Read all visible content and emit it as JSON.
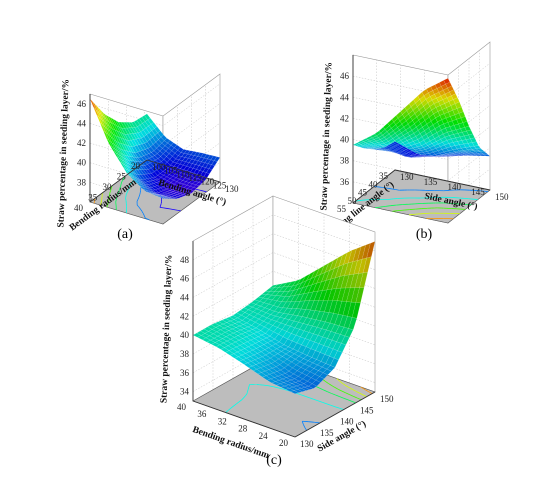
{
  "chart_data": [
    {
      "type": "surface",
      "panel_label": "(a)",
      "xlabel": "Bending radius/mm",
      "ylabel": "Bending angle (°)",
      "zlabel": "Straw percentage in seeding layer/%",
      "x_ticks": [
        20,
        25,
        30,
        35,
        40
      ],
      "y_ticks": [
        100,
        105,
        110,
        115,
        120,
        125,
        130
      ],
      "z_ticks": [
        38,
        40,
        42,
        44,
        46
      ],
      "xlim": [
        20,
        40
      ],
      "ylim": [
        100,
        130
      ],
      "zlim": [
        36,
        47
      ],
      "contour_floor": true,
      "grid": true,
      "surface": {
        "x": [
          20,
          25,
          30,
          35,
          40
        ],
        "y": [
          100,
          107.5,
          115,
          122.5,
          130
        ],
        "z": [
          [
            40.7,
            40.9,
            42.0,
            43.9,
            46.5
          ],
          [
            38.9,
            38.6,
            39.1,
            40.5,
            42.6
          ],
          [
            38.2,
            37.5,
            37.5,
            38.3,
            40.1
          ],
          [
            38.4,
            37.4,
            37.0,
            37.4,
            38.8
          ],
          [
            38.5,
            37.3,
            37.0,
            37.5,
            38.6
          ]
        ]
      }
    },
    {
      "type": "surface",
      "panel_label": "(b)",
      "xlabel": "Bending line angle (°)",
      "ylabel": "Side angle (°)",
      "zlabel": "Straw percentage in seeding layer/%",
      "x_ticks": [
        35,
        40,
        45,
        50,
        55
      ],
      "y_ticks": [
        130,
        135,
        140,
        145,
        150
      ],
      "z_ticks": [
        36,
        38,
        40,
        42,
        44,
        46
      ],
      "xlim": [
        35,
        55
      ],
      "ylim": [
        130,
        150
      ],
      "zlim": [
        34,
        48
      ],
      "contour_floor": true,
      "grid": true,
      "surface": {
        "x": [
          35,
          40,
          45,
          50,
          55
        ],
        "y": [
          130,
          135,
          140,
          145,
          150
        ],
        "z": [
          [
            36.7,
            36.9,
            37.5,
            38.4,
            39.5
          ],
          [
            35.9,
            36.4,
            37.7,
            39.3,
            41.1
          ],
          [
            36.2,
            37.0,
            38.8,
            41.2,
            43.6
          ],
          [
            36.8,
            38.0,
            40.5,
            43.4,
            46.1
          ],
          [
            37.2,
            38.8,
            41.6,
            44.9,
            47.7
          ]
        ]
      }
    },
    {
      "type": "surface",
      "panel_label": "(c)",
      "xlabel": "Bending radius/mm",
      "ylabel": "Side angle (°)",
      "zlabel": "Straw percentage in seeding layer/%",
      "x_ticks": [
        20,
        24,
        28,
        32,
        36,
        40
      ],
      "y_ticks": [
        130,
        135,
        140,
        145,
        150
      ],
      "z_ticks": [
        34,
        36,
        38,
        40,
        42,
        44,
        46,
        48
      ],
      "xlim": [
        20,
        40
      ],
      "ylim": [
        130,
        150
      ],
      "zlim": [
        33,
        50
      ],
      "contour_floor": true,
      "grid": true,
      "surface": {
        "x": [
          20,
          25,
          30,
          35,
          40
        ],
        "y": [
          130,
          135,
          140,
          145,
          150
        ],
        "z": [
          [
            37.6,
            37.9,
            38.8,
            39.6,
            40.0
          ],
          [
            37.0,
            37.5,
            38.5,
            39.5,
            40.0
          ],
          [
            38.0,
            38.2,
            38.5,
            39.2,
            39.7
          ],
          [
            41.2,
            41.0,
            40.6,
            40.0,
            40.0
          ],
          [
            49.0,
            47.0,
            44.5,
            42.0,
            40.5
          ]
        ]
      }
    }
  ]
}
